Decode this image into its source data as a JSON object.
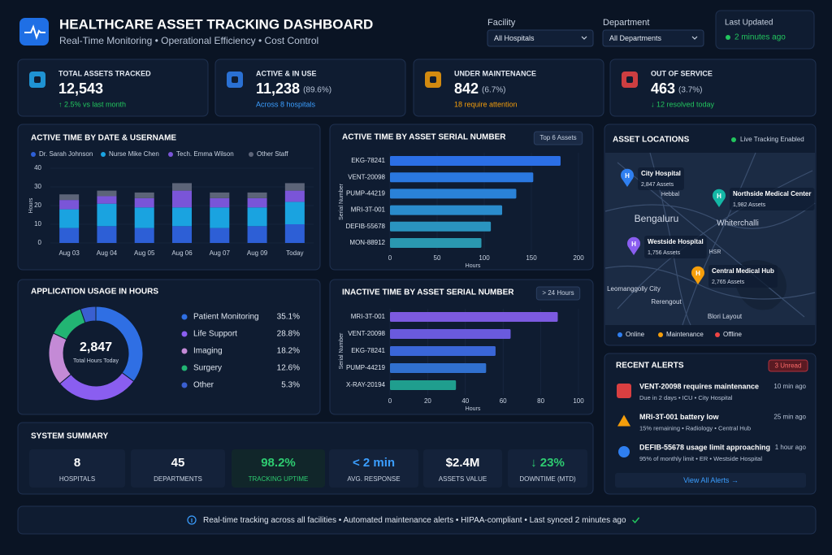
{
  "header": {
    "title": "HEALTHCARE ASSET TRACKING DASHBOARD",
    "subtitle": "Real-Time Monitoring • Operational Efficiency • Cost Control"
  },
  "filters": [
    {
      "label": "Facility",
      "value": "All Hospitals"
    },
    {
      "label": "Department",
      "value": "All Departments"
    }
  ],
  "last_updated": {
    "label": "Last Updated",
    "value": "2 minutes ago"
  },
  "kpis": [
    {
      "label": "TOTAL ASSETS TRACKED",
      "value": "12,543",
      "note": "↑ 2.5% vs last month"
    },
    {
      "label": "ACTIVE & IN USE",
      "value": "11,238",
      "share": "(89.6%)",
      "note": "Across 8 hospitals"
    },
    {
      "label": "UNDER MAINTENANCE",
      "value": "842",
      "share": "(6.7%)",
      "note": "18 require attention"
    },
    {
      "label": "OUT OF SERVICE",
      "value": "463",
      "share": "(3.7%)",
      "note": "↓ 12 resolved today"
    }
  ],
  "chart_data": [
    {
      "type": "stacked-bar",
      "title": "ACTIVE TIME BY DATE & USERNAME",
      "y_label": "Hours",
      "categories": [
        "Aug 03",
        "Aug 04",
        "Aug 05",
        "Aug 06",
        "Aug 07",
        "Aug 09",
        "Today"
      ],
      "series": [
        {
          "name": "Dr. Sarah Johnson",
          "color": "#2d5fd6",
          "values": [
            8,
            9,
            8,
            9,
            8,
            9,
            10
          ]
        },
        {
          "name": "Nurse Mike Chen",
          "color": "#1aa3e0",
          "values": [
            10,
            12,
            11,
            10,
            11,
            10,
            12
          ]
        },
        {
          "name": "Tech. Emma Wilson",
          "color": "#7a55d8",
          "values": [
            5,
            4,
            5,
            9,
            5,
            5,
            6
          ]
        },
        {
          "name": "Other Staff",
          "color": "#5c6478",
          "values": [
            3,
            3,
            3,
            4,
            3,
            3,
            4
          ]
        }
      ],
      "ylim": [
        0,
        40
      ],
      "yticks": [
        0,
        10,
        20,
        30,
        40
      ],
      "grid": true
    },
    {
      "type": "hbar",
      "title": "ACTIVE TIME BY ASSET SERIAL NUMBER",
      "badge": "Top 6 Assets",
      "x_label": "Hours",
      "y_label": "Serial Number",
      "categories": [
        "EKG-78241",
        "VENT-20098",
        "PUMP-44219",
        "MRI-3T-001",
        "DEFIB-55678",
        "MON-88912"
      ],
      "values": [
        181,
        152,
        134,
        119,
        107,
        97
      ],
      "colors": [
        "#2b6fe6",
        "#2a78e0",
        "#2a82d8",
        "#2a8ccc",
        "#2a94bf",
        "#2a98b0"
      ],
      "xlim": [
        0,
        200
      ],
      "xticks": [
        0,
        50,
        100,
        150,
        200
      ]
    },
    {
      "type": "hbar",
      "title": "INACTIVE TIME BY ASSET SERIAL NUMBER",
      "badge": "> 24 Hours",
      "x_label": "Hours",
      "y_label": "Serial Number",
      "categories": [
        "MRI-3T-001",
        "VENT-20098",
        "EKG-78241",
        "PUMP-44219",
        "X-RAY-20194"
      ],
      "values": [
        89,
        64,
        56,
        51,
        35
      ],
      "colors": [
        "#7c5ae0",
        "#6a5ade",
        "#3a66d8",
        "#3070cf",
        "#1f9e8e"
      ],
      "xlim": [
        0,
        100
      ],
      "xticks": [
        0,
        20,
        40,
        60,
        80,
        100
      ]
    },
    {
      "type": "donut",
      "title": "APPLICATION USAGE IN HOURS",
      "center_value": "2,847",
      "center_label": "Total Hours Today",
      "categories": [
        "Patient Monitoring",
        "Life Support",
        "Imaging",
        "Surgery",
        "Other"
      ],
      "values": [
        35.1,
        28.8,
        18.2,
        12.6,
        5.3
      ],
      "value_labels": [
        "35.1%",
        "28.8%",
        "18.2%",
        "12.6%",
        "5.3%"
      ],
      "colors": [
        "#2f6fe4",
        "#8a5ef0",
        "#c48ad6",
        "#22b573",
        "#3a5fd0"
      ]
    }
  ],
  "map": {
    "title": "ASSET LOCATIONS",
    "status": "Live Tracking Enabled",
    "places": [
      "Hebbal",
      "Bengaluru",
      "Whiterchalli",
      "HSR",
      "Leomanggolly City",
      "Rerengout",
      "Blori Layout"
    ],
    "hospitals": [
      {
        "name": "City Hospital",
        "assets": "2,847 Assets"
      },
      {
        "name": "Northside Medical Center",
        "assets": "1,982 Assets"
      },
      {
        "name": "Westside Hospital",
        "assets": "1,756 Assets"
      },
      {
        "name": "Central Medical Hub",
        "assets": "2,765 Assets"
      }
    ],
    "legend": [
      "Online",
      "Maintenance",
      "Offline"
    ]
  },
  "alerts": {
    "title": "RECENT ALERTS",
    "badge": "3 Unread",
    "items": [
      {
        "title": "VENT-20098 requires maintenance",
        "detail": "Due in 2 days • ICU • City Hospital",
        "time": "10 min ago"
      },
      {
        "title": "MRI-3T-001 battery low",
        "detail": "15% remaining • Radiology • Central Hub",
        "time": "25 min ago"
      },
      {
        "title": "DEFIB-55678 usage limit approaching",
        "detail": "95% of monthly limit • ER • Westside Hospital",
        "time": "1 hour ago"
      }
    ],
    "link": "View All Alerts →"
  },
  "summary": {
    "title": "SYSTEM SUMMARY",
    "items": [
      {
        "value": "8",
        "label": "HOSPITALS"
      },
      {
        "value": "45",
        "label": "DEPARTMENTS"
      },
      {
        "value": "98.2%",
        "label": "TRACKING UPTIME"
      },
      {
        "value": "< 2 min",
        "label": "AVG. RESPONSE"
      },
      {
        "value": "$2.4M",
        "label": "ASSETS VALUE"
      },
      {
        "value": "↓ 23%",
        "label": "DOWNTIME (MTD)"
      }
    ]
  },
  "footer": {
    "text": "Real-time tracking across all facilities • Automated maintenance alerts • HIPAA-compliant • Last synced 2 minutes ago"
  }
}
